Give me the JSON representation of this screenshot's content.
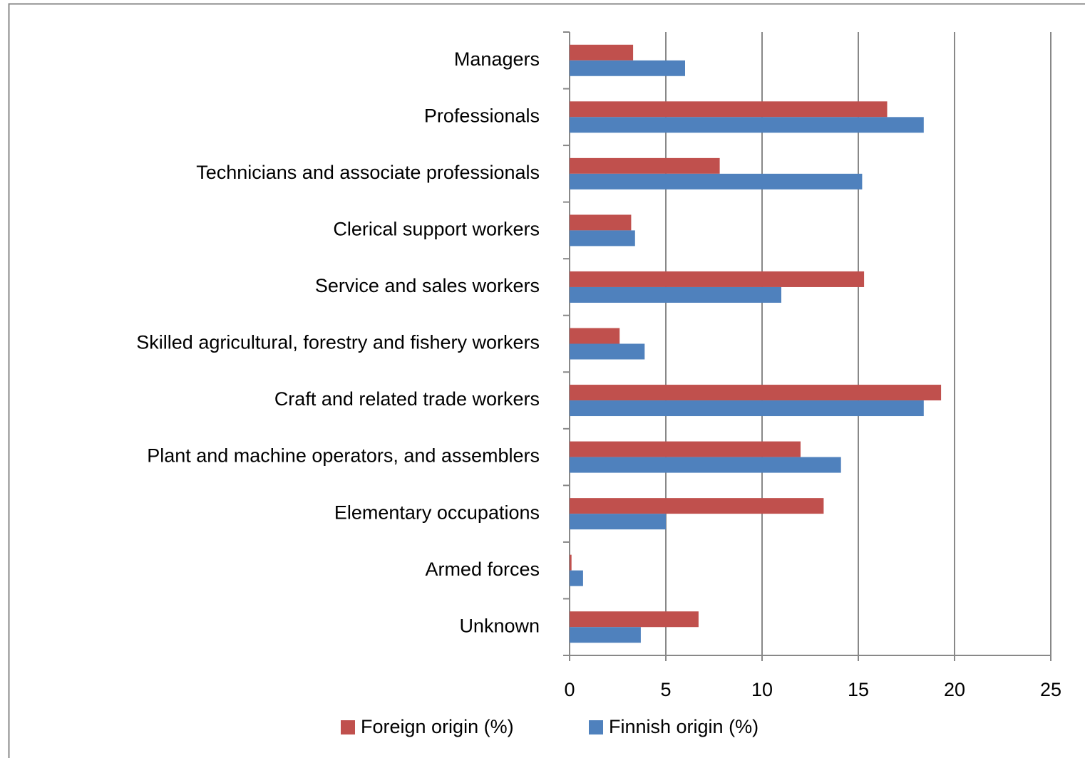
{
  "chart_data": {
    "type": "hbar",
    "categories": [
      "Managers",
      "Professionals",
      "Technicians and associate professionals",
      "Clerical support workers",
      "Service and sales workers",
      "Skilled agricultural, forestry and fishery workers",
      "Craft and related trade workers",
      "Plant and machine operators, and assemblers",
      "Elementary occupations",
      "Armed forces",
      "Unknown"
    ],
    "series": [
      {
        "name": "Foreign origin (%)",
        "color": "#c0504d",
        "values": [
          3.3,
          16.5,
          7.8,
          3.2,
          15.3,
          2.6,
          19.3,
          12.0,
          13.2,
          0.1,
          6.7
        ]
      },
      {
        "name": "Finnish origin (%)",
        "color": "#4f81bd",
        "values": [
          6.0,
          18.4,
          15.2,
          3.4,
          11.0,
          3.9,
          18.4,
          14.1,
          5.0,
          0.7,
          3.7
        ]
      }
    ],
    "xlim": [
      0,
      25
    ],
    "xticks": [
      0,
      5,
      10,
      15,
      20,
      25
    ],
    "grid": true,
    "legend": "bottom"
  }
}
